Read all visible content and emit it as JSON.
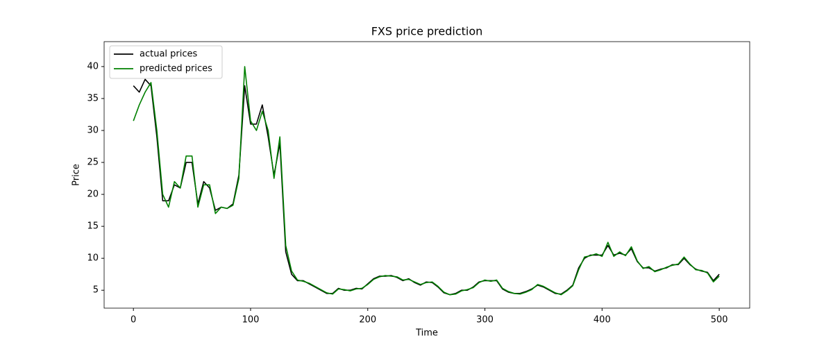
{
  "chart_data": {
    "type": "line",
    "title": "FXS price prediction",
    "x_label": "Time",
    "y_label": "Price",
    "x": [
      0,
      5,
      10,
      15,
      20,
      25,
      30,
      35,
      40,
      45,
      50,
      55,
      60,
      65,
      70,
      75,
      80,
      85,
      90,
      95,
      100,
      105,
      110,
      115,
      120,
      125,
      130,
      135,
      140,
      145,
      150,
      155,
      160,
      165,
      170,
      175,
      180,
      185,
      190,
      195,
      200,
      205,
      210,
      215,
      220,
      225,
      230,
      235,
      240,
      245,
      250,
      255,
      260,
      265,
      270,
      275,
      280,
      285,
      290,
      295,
      300,
      305,
      310,
      315,
      320,
      325,
      330,
      335,
      340,
      345,
      350,
      355,
      360,
      365,
      370,
      375,
      380,
      385,
      390,
      395,
      400,
      405,
      410,
      415,
      420,
      425,
      430,
      435,
      440,
      445,
      450,
      455,
      460,
      465,
      470,
      475,
      480,
      485,
      490,
      495,
      500
    ],
    "series": [
      {
        "name": "actual prices",
        "color": "#000000",
        "values": [
          37,
          36,
          38,
          37,
          29,
          19,
          19,
          21.5,
          21,
          25,
          25,
          18.5,
          22,
          21,
          17.5,
          18,
          17.8,
          18.5,
          23,
          37,
          31,
          31,
          34,
          29,
          23,
          28,
          11,
          7.5,
          6.5,
          6.5,
          6,
          5.5,
          5,
          4.5,
          4.5,
          5.3,
          5,
          5,
          5.3,
          5.2,
          6,
          6.8,
          7.2,
          7.2,
          7.3,
          7,
          6.5,
          6.8,
          6.2,
          5.8,
          6.3,
          6.2,
          5.5,
          4.6,
          4.3,
          4.5,
          5,
          5,
          5.5,
          6.3,
          6.5,
          6.5,
          6.5,
          5.2,
          4.7,
          4.5,
          4.5,
          4.8,
          5.2,
          5.8,
          5.5,
          5,
          4.5,
          4.4,
          5,
          5.8,
          8.5,
          10,
          10.5,
          10.5,
          10.5,
          12,
          10.5,
          10.8,
          10.5,
          11.5,
          9.5,
          8.5,
          8.5,
          8,
          8.3,
          8.5,
          9,
          9,
          10,
          9,
          8.3,
          8,
          7.8,
          6.5,
          7.5
        ]
      },
      {
        "name": "predicted prices",
        "color": "#008000",
        "values": [
          31.5,
          34,
          36,
          37.5,
          30,
          20,
          18,
          22,
          21,
          26,
          26,
          18,
          21.5,
          21.5,
          17,
          18,
          17.8,
          18.3,
          22.5,
          40,
          31.5,
          30,
          33,
          30,
          22.5,
          29,
          12,
          8,
          6.6,
          6.4,
          6.1,
          5.6,
          5.1,
          4.6,
          4.4,
          5.2,
          5.1,
          4.9,
          5.2,
          5.3,
          5.9,
          6.7,
          7.1,
          7.3,
          7.2,
          7.1,
          6.6,
          6.7,
          6.3,
          5.9,
          6.2,
          6.3,
          5.6,
          4.7,
          4.3,
          4.4,
          4.9,
          5.1,
          5.4,
          6.2,
          6.6,
          6.4,
          6.6,
          5.3,
          4.8,
          4.5,
          4.4,
          4.7,
          5.1,
          5.9,
          5.6,
          5.1,
          4.6,
          4.3,
          4.9,
          5.7,
          8.2,
          10.2,
          10.4,
          10.7,
          10.3,
          12.5,
          10.3,
          11,
          10.4,
          11.8,
          9.6,
          8.4,
          8.7,
          7.9,
          8.2,
          8.6,
          8.9,
          9.1,
          10.2,
          9.1,
          8.2,
          8.1,
          7.7,
          6.3,
          7.2
        ]
      }
    ],
    "xlim": [
      -25,
      526
    ],
    "ylim": [
      2.2,
      43.9
    ],
    "xticks": [
      0,
      100,
      200,
      300,
      400,
      500
    ],
    "yticks": [
      5,
      10,
      15,
      20,
      25,
      30,
      35,
      40
    ],
    "legend": "upper left"
  }
}
